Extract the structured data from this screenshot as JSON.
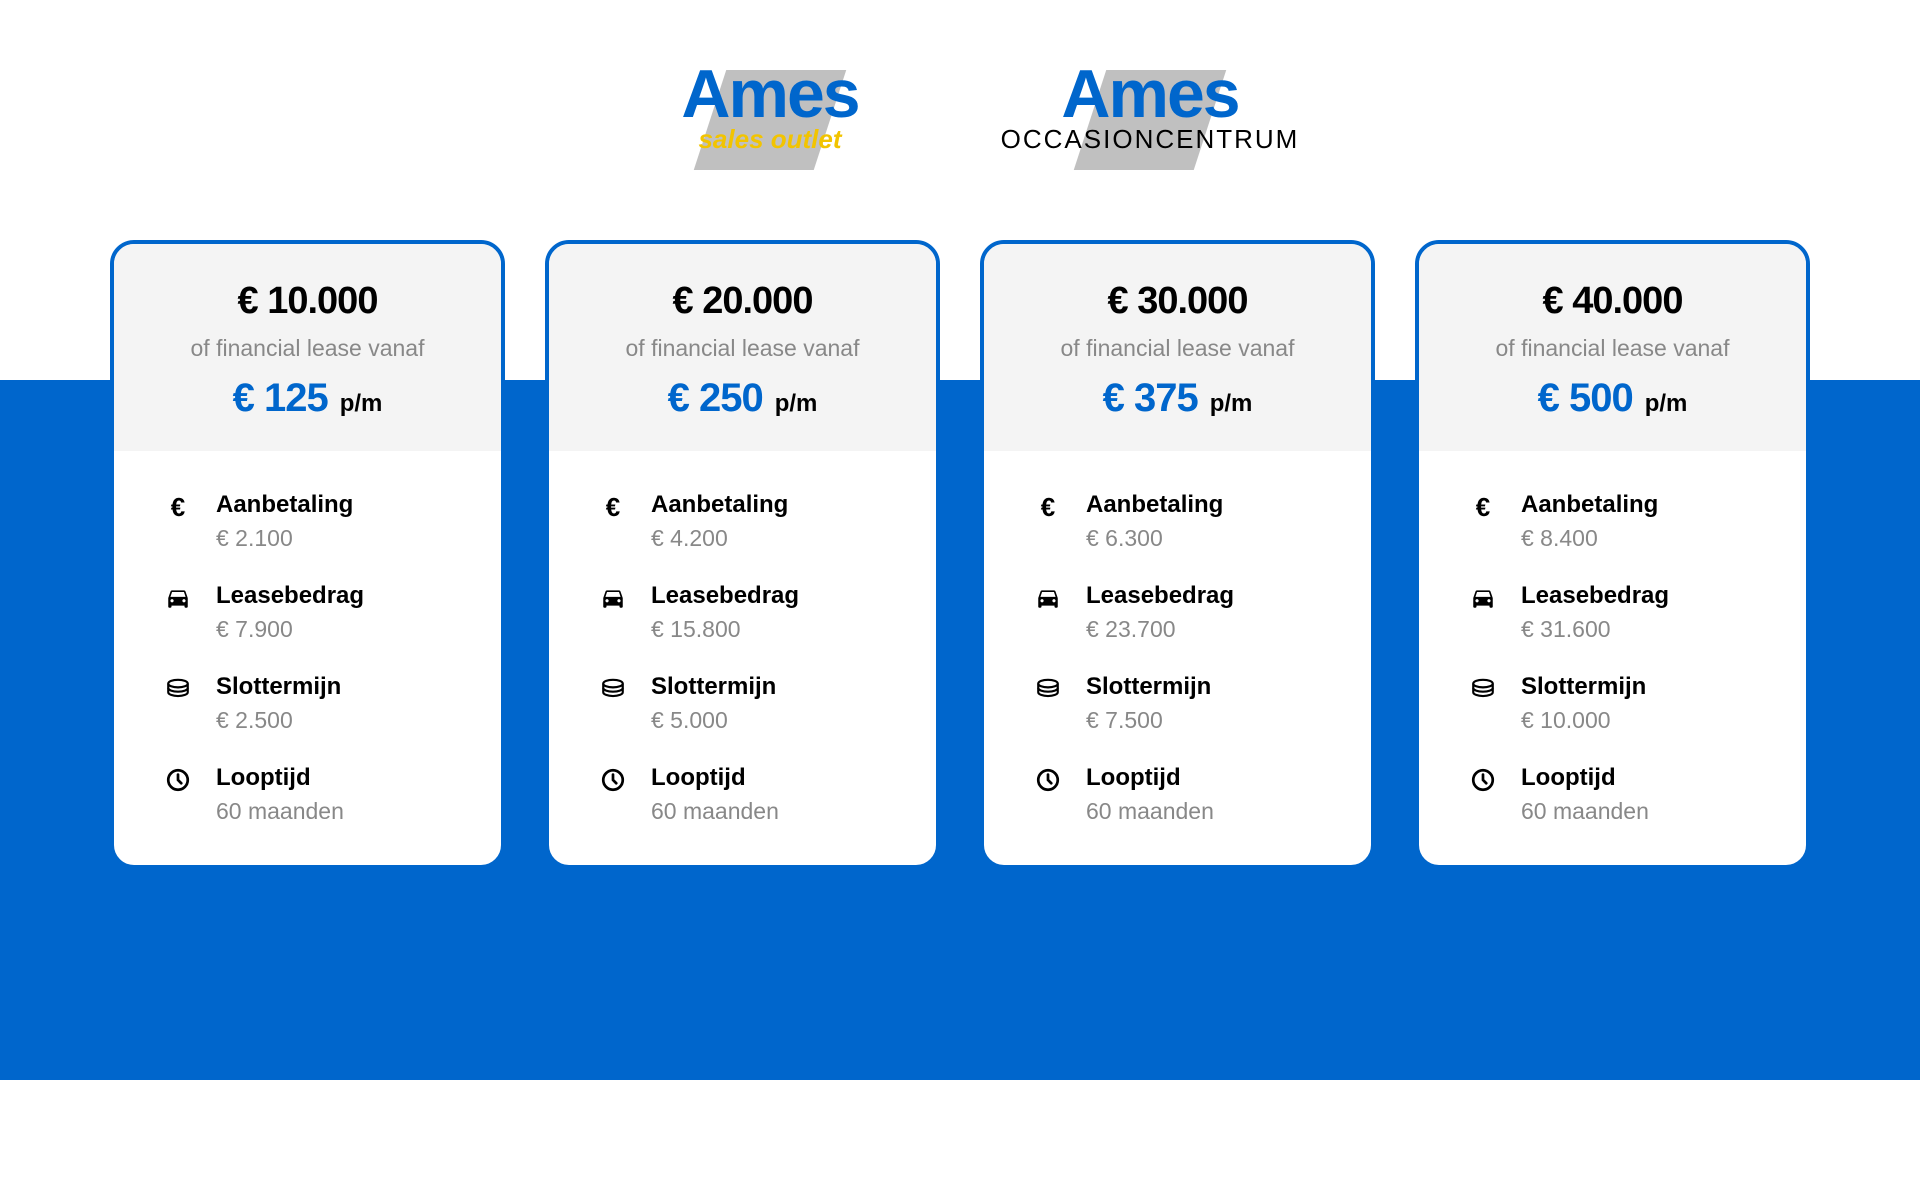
{
  "logos": {
    "left": {
      "main": "Ames",
      "sub": "sales outlet"
    },
    "right": {
      "main": "Ames",
      "sub": "OCCASIONCENTRUM"
    }
  },
  "colors": {
    "brand_blue": "#0066cc",
    "brand_yellow": "#f2c400",
    "header_bg": "#f4f4f4",
    "text_muted": "#888888"
  },
  "common": {
    "lease_text": "of financial lease vanaf",
    "per_month": "p/m",
    "labels": {
      "aanbetaling": "Aanbetaling",
      "leasebedrag": "Leasebedrag",
      "slottermijn": "Slottermijn",
      "looptijd": "Looptijd"
    }
  },
  "cards": [
    {
      "price": "€ 10.000",
      "monthly": "€ 125",
      "aanbetaling": "€ 2.100",
      "leasebedrag": "€ 7.900",
      "slottermijn": "€ 2.500",
      "looptijd": "60 maanden"
    },
    {
      "price": "€ 20.000",
      "monthly": "€ 250",
      "aanbetaling": "€ 4.200",
      "leasebedrag": "€ 15.800",
      "slottermijn": "€ 5.000",
      "looptijd": "60 maanden"
    },
    {
      "price": "€ 30.000",
      "monthly": "€ 375",
      "aanbetaling": "€ 6.300",
      "leasebedrag": "€ 23.700",
      "slottermijn": "€ 7.500",
      "looptijd": "60 maanden"
    },
    {
      "price": "€ 40.000",
      "monthly": "€ 500",
      "aanbetaling": "€ 8.400",
      "leasebedrag": "€ 31.600",
      "slottermijn": "€ 10.000",
      "looptijd": "60 maanden"
    }
  ]
}
